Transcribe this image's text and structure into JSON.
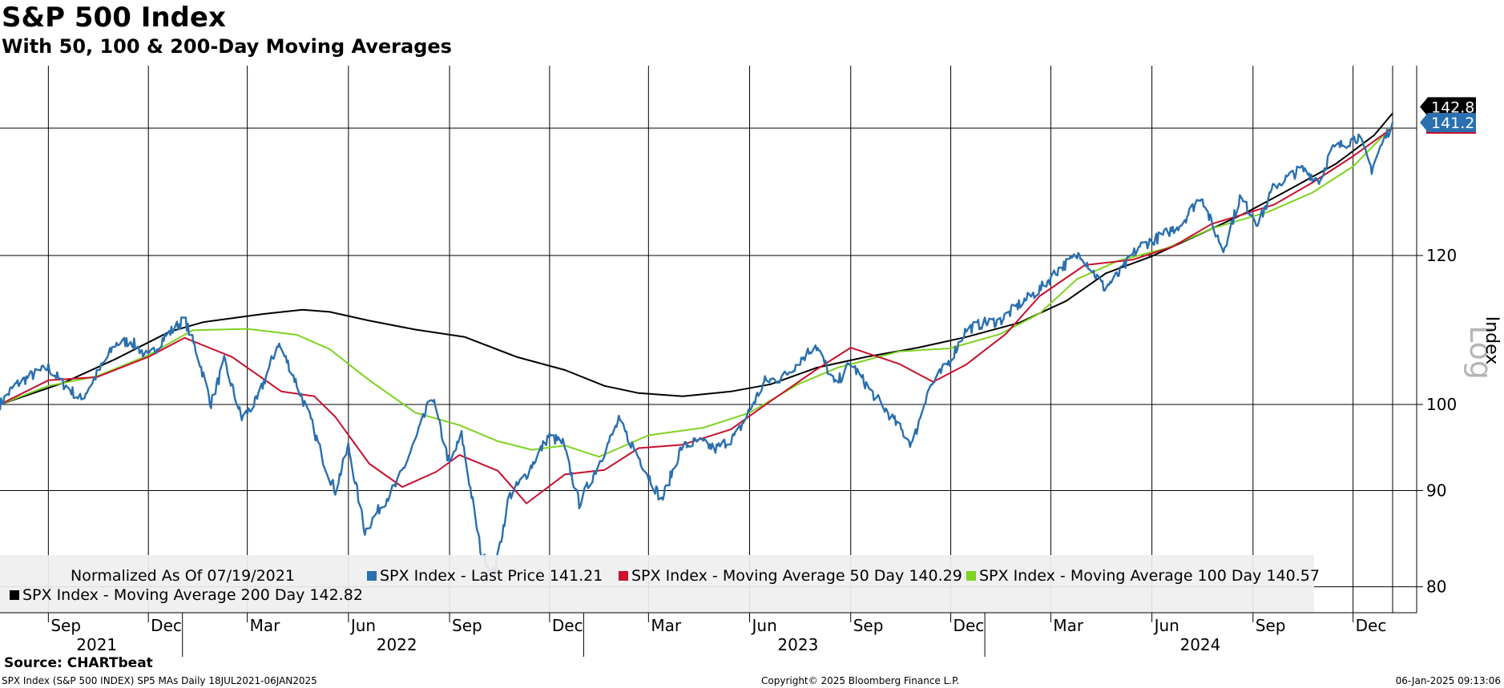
{
  "title": "S&P 500 Index",
  "subtitle": "With 50, 100 & 200-Day Moving Averages",
  "source": "Source: CHARTbeat",
  "footer": {
    "left": "SPX Index (S&P 500 INDEX) SP5 MAs  Daily 18JUL2021-06JAN2025",
    "center": "Copyright© 2025 Bloomberg Finance L.P.",
    "right": "06-Jan-2025 09:13:06"
  },
  "colors": {
    "price": "#2a6fae",
    "ma50": "#c8102e",
    "ma100": "#7ed321",
    "ma200": "#000000",
    "legend_bg": "#efefef",
    "grid": "#000000"
  },
  "chart_data": {
    "type": "line",
    "yscale": "log",
    "ylabel": "Index",
    "scale_label": "Log",
    "ylim": [
      78,
      150
    ],
    "yticks": [
      80,
      90,
      100,
      120
    ],
    "last_value_labels": [
      "142.82",
      "141.21"
    ],
    "x_month_ticks": [
      {
        "label": "Sep",
        "date": "2021-09-01"
      },
      {
        "label": "Dec",
        "date": "2021-12-01"
      },
      {
        "label": "Mar",
        "date": "2022-03-01"
      },
      {
        "label": "Jun",
        "date": "2022-06-01"
      },
      {
        "label": "Sep",
        "date": "2022-09-01"
      },
      {
        "label": "Dec",
        "date": "2022-12-01"
      },
      {
        "label": "Mar",
        "date": "2023-03-01"
      },
      {
        "label": "Jun",
        "date": "2023-06-01"
      },
      {
        "label": "Sep",
        "date": "2023-09-01"
      },
      {
        "label": "Dec",
        "date": "2023-12-01"
      },
      {
        "label": "Mar",
        "date": "2024-03-01"
      },
      {
        "label": "Jun",
        "date": "2024-06-01"
      },
      {
        "label": "Sep",
        "date": "2024-09-01"
      },
      {
        "label": "Dec",
        "date": "2024-12-01"
      }
    ],
    "x_year_labels": [
      {
        "label": "2021",
        "date": "2021-10-15"
      },
      {
        "label": "2022",
        "date": "2022-07-15"
      },
      {
        "label": "2023",
        "date": "2023-07-15"
      },
      {
        "label": "2024",
        "date": "2024-07-15"
      }
    ],
    "x_year_dividers": [
      "2022-01-01",
      "2023-01-01",
      "2024-01-01"
    ],
    "x_range": [
      "2021-07-19",
      "2025-01-06"
    ],
    "legend": {
      "normalized_note": "Normalized As Of 07/19/2021",
      "entries": [
        "SPX Index - Last Price 141.21",
        "SPX Index - Moving Average 50 Day 140.29",
        "SPX Index - Moving Average 100 Day 140.57",
        "SPX Index - Moving Average 200 Day 142.82"
      ]
    },
    "series": [
      {
        "key": "price",
        "name": "SPX Index - Last Price",
        "last": 141.21,
        "points": [
          [
            "2021-07-19",
            100.0
          ],
          [
            "2021-08-01",
            102.3
          ],
          [
            "2021-08-15",
            103.5
          ],
          [
            "2021-09-01",
            104.6
          ],
          [
            "2021-09-15",
            102.5
          ],
          [
            "2021-10-01",
            100.6
          ],
          [
            "2021-10-15",
            103.7
          ],
          [
            "2021-11-01",
            107.7
          ],
          [
            "2021-11-15",
            108.1
          ],
          [
            "2021-12-01",
            105.9
          ],
          [
            "2021-12-15",
            108.5
          ],
          [
            "2022-01-03",
            111.0
          ],
          [
            "2022-01-15",
            106.2
          ],
          [
            "2022-01-27",
            100.1
          ],
          [
            "2022-02-08",
            105.4
          ],
          [
            "2022-02-24",
            98.3
          ],
          [
            "2022-03-10",
            100.5
          ],
          [
            "2022-03-29",
            107.8
          ],
          [
            "2022-04-10",
            104.3
          ],
          [
            "2022-04-28",
            98.0
          ],
          [
            "2022-05-10",
            93.1
          ],
          [
            "2022-05-20",
            90.0
          ],
          [
            "2022-06-01",
            95.0
          ],
          [
            "2022-06-16",
            85.6
          ],
          [
            "2022-06-30",
            88.2
          ],
          [
            "2022-07-15",
            90.7
          ],
          [
            "2022-08-01",
            95.7
          ],
          [
            "2022-08-16",
            101.1
          ],
          [
            "2022-09-01",
            92.9
          ],
          [
            "2022-09-12",
            96.3
          ],
          [
            "2022-09-30",
            83.2
          ],
          [
            "2022-10-12",
            81.3
          ],
          [
            "2022-10-25",
            89.3
          ],
          [
            "2022-11-10",
            91.8
          ],
          [
            "2022-11-30",
            96.2
          ],
          [
            "2022-12-13",
            95.4
          ],
          [
            "2022-12-28",
            88.6
          ],
          [
            "2023-01-12",
            92.3
          ],
          [
            "2023-02-02",
            98.0
          ],
          [
            "2023-02-20",
            93.8
          ],
          [
            "2023-03-13",
            88.9
          ],
          [
            "2023-03-31",
            94.9
          ],
          [
            "2023-04-15",
            95.6
          ],
          [
            "2023-05-01",
            94.7
          ],
          [
            "2023-05-20",
            96.3
          ],
          [
            "2023-06-15",
            102.9
          ],
          [
            "2023-07-01",
            103.3
          ],
          [
            "2023-07-31",
            107.6
          ],
          [
            "2023-08-18",
            102.4
          ],
          [
            "2023-09-01",
            105.2
          ],
          [
            "2023-09-20",
            101.5
          ],
          [
            "2023-10-05",
            99.0
          ],
          [
            "2023-10-27",
            95.2
          ],
          [
            "2023-11-10",
            101.7
          ],
          [
            "2023-11-30",
            105.5
          ],
          [
            "2023-12-15",
            109.6
          ],
          [
            "2023-12-29",
            110.4
          ],
          [
            "2024-01-15",
            110.8
          ],
          [
            "2024-02-01",
            113.0
          ],
          [
            "2024-02-20",
            115.1
          ],
          [
            "2024-03-08",
            118.0
          ],
          [
            "2024-03-28",
            120.3
          ],
          [
            "2024-04-19",
            115.3
          ],
          [
            "2024-05-02",
            117.3
          ],
          [
            "2024-05-20",
            121.3
          ],
          [
            "2024-06-10",
            122.9
          ],
          [
            "2024-06-28",
            124.8
          ],
          [
            "2024-07-16",
            129.2
          ],
          [
            "2024-07-25",
            124.9
          ],
          [
            "2024-08-05",
            120.8
          ],
          [
            "2024-08-20",
            128.8
          ],
          [
            "2024-09-06",
            124.8
          ],
          [
            "2024-09-20",
            130.6
          ],
          [
            "2024-10-15",
            133.4
          ],
          [
            "2024-11-01",
            131.5
          ],
          [
            "2024-11-11",
            136.5
          ],
          [
            "2024-12-06",
            138.8
          ],
          [
            "2024-12-18",
            133.4
          ],
          [
            "2024-12-26",
            137.0
          ],
          [
            "2025-01-06",
            141.21
          ]
        ]
      },
      {
        "key": "ma50",
        "name": "SPX Index - Moving Average 50 Day",
        "last": 140.29,
        "points": [
          [
            "2021-07-19",
            100.0
          ],
          [
            "2021-09-01",
            103.0
          ],
          [
            "2021-10-15",
            103.4
          ],
          [
            "2021-12-01",
            106.0
          ],
          [
            "2022-01-03",
            108.5
          ],
          [
            "2022-02-15",
            106.0
          ],
          [
            "2022-04-01",
            101.6
          ],
          [
            "2022-05-01",
            101.0
          ],
          [
            "2022-05-20",
            98.5
          ],
          [
            "2022-06-20",
            93.0
          ],
          [
            "2022-07-20",
            90.4
          ],
          [
            "2022-08-20",
            92.1
          ],
          [
            "2022-09-10",
            94.0
          ],
          [
            "2022-10-15",
            92.2
          ],
          [
            "2022-11-10",
            88.6
          ],
          [
            "2022-12-15",
            91.8
          ],
          [
            "2023-01-20",
            92.3
          ],
          [
            "2023-02-20",
            94.8
          ],
          [
            "2023-04-01",
            95.2
          ],
          [
            "2023-05-15",
            97.0
          ],
          [
            "2023-06-20",
            100.4
          ],
          [
            "2023-08-01",
            104.4
          ],
          [
            "2023-09-01",
            107.2
          ],
          [
            "2023-10-15",
            105.1
          ],
          [
            "2023-11-15",
            102.8
          ],
          [
            "2023-12-15",
            105.0
          ],
          [
            "2024-01-20",
            109.0
          ],
          [
            "2024-02-20",
            114.2
          ],
          [
            "2024-04-01",
            118.6
          ],
          [
            "2024-05-15",
            119.4
          ],
          [
            "2024-06-20",
            121.3
          ],
          [
            "2024-07-25",
            124.7
          ],
          [
            "2024-08-25",
            126.3
          ],
          [
            "2024-09-20",
            127.7
          ],
          [
            "2024-10-25",
            131.2
          ],
          [
            "2024-12-01",
            135.5
          ],
          [
            "2025-01-06",
            140.29
          ]
        ]
      },
      {
        "key": "ma100",
        "name": "SPX Index - Moving Average 100 Day",
        "last": 140.57,
        "points": [
          [
            "2021-07-19",
            100.0
          ],
          [
            "2021-09-01",
            102.3
          ],
          [
            "2021-10-15",
            103.5
          ],
          [
            "2021-12-01",
            106.2
          ],
          [
            "2022-01-10",
            109.5
          ],
          [
            "2022-03-01",
            109.7
          ],
          [
            "2022-04-15",
            108.9
          ],
          [
            "2022-05-15",
            107.0
          ],
          [
            "2022-06-20",
            103.0
          ],
          [
            "2022-08-01",
            99.0
          ],
          [
            "2022-09-10",
            97.5
          ],
          [
            "2022-10-15",
            95.6
          ],
          [
            "2022-11-15",
            94.6
          ],
          [
            "2022-12-15",
            95.1
          ],
          [
            "2023-01-15",
            93.8
          ],
          [
            "2023-03-01",
            96.3
          ],
          [
            "2023-04-20",
            97.2
          ],
          [
            "2023-06-01",
            99.0
          ],
          [
            "2023-07-15",
            102.5
          ],
          [
            "2023-08-20",
            104.6
          ],
          [
            "2023-10-15",
            106.7
          ],
          [
            "2023-11-30",
            107.1
          ],
          [
            "2024-01-15",
            109.0
          ],
          [
            "2024-02-20",
            111.8
          ],
          [
            "2024-03-25",
            116.6
          ],
          [
            "2024-05-01",
            119.2
          ],
          [
            "2024-06-15",
            121.1
          ],
          [
            "2024-07-25",
            124.0
          ],
          [
            "2024-09-15",
            126.6
          ],
          [
            "2024-10-25",
            129.6
          ],
          [
            "2024-12-01",
            133.8
          ],
          [
            "2025-01-06",
            140.57
          ]
        ]
      },
      {
        "key": "ma200",
        "name": "SPX Index - Moving Average 200 Day",
        "last": 142.82,
        "points": [
          [
            "2021-07-19",
            100.0
          ],
          [
            "2021-09-15",
            102.7
          ],
          [
            "2021-11-01",
            105.7
          ],
          [
            "2021-12-20",
            109.3
          ],
          [
            "2022-01-20",
            110.6
          ],
          [
            "2022-03-15",
            111.7
          ],
          [
            "2022-04-20",
            112.3
          ],
          [
            "2022-05-15",
            112.0
          ],
          [
            "2022-06-20",
            110.8
          ],
          [
            "2022-08-01",
            109.6
          ],
          [
            "2022-09-15",
            108.6
          ],
          [
            "2022-11-01",
            106.0
          ],
          [
            "2022-12-15",
            104.3
          ],
          [
            "2023-01-20",
            102.3
          ],
          [
            "2023-02-20",
            101.4
          ],
          [
            "2023-04-01",
            101.0
          ],
          [
            "2023-05-15",
            101.6
          ],
          [
            "2023-06-20",
            102.5
          ],
          [
            "2023-08-01",
            104.6
          ],
          [
            "2023-09-15",
            106.0
          ],
          [
            "2023-11-01",
            107.2
          ],
          [
            "2023-12-15",
            108.6
          ],
          [
            "2024-02-01",
            110.5
          ],
          [
            "2024-03-15",
            113.5
          ],
          [
            "2024-04-20",
            117.4
          ],
          [
            "2024-06-01",
            119.9
          ],
          [
            "2024-07-15",
            123.2
          ],
          [
            "2024-08-25",
            126.4
          ],
          [
            "2024-10-01",
            129.8
          ],
          [
            "2024-11-15",
            134.2
          ],
          [
            "2024-12-20",
            139.0
          ],
          [
            "2025-01-06",
            142.82
          ]
        ]
      }
    ]
  }
}
